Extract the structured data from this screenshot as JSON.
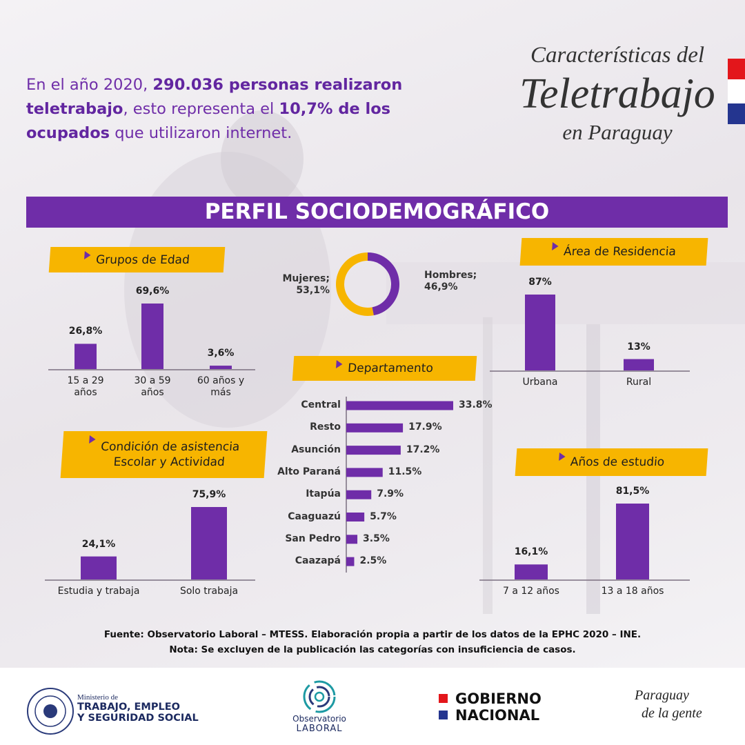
{
  "header": {
    "intro": [
      {
        "text": "En el año 2020, ",
        "bold": false
      },
      {
        "text": "290.036 personas realizaron teletrabajo",
        "bold": true
      },
      {
        "text": ", esto representa el ",
        "bold": false
      },
      {
        "text": "10,7% de los ocupados",
        "bold": true
      },
      {
        "text": " que utilizaron internet.",
        "bold": false
      }
    ],
    "title": [
      "Características del",
      "Teletrabajo",
      "en Paraguay"
    ]
  },
  "section_title": "PERFIL SOCIODEMOGRÁFICO",
  "chart_data": [
    {
      "type": "bar",
      "title": [
        "Grupos de Edad"
      ],
      "color": "#6f2da8",
      "categories": [
        "15 a 29 años",
        "30 a 59 años",
        "60 años y más"
      ],
      "values": [
        26.8,
        69.6,
        3.6
      ],
      "value_labels": [
        "26,8%",
        "69,6%",
        "3,6%"
      ]
    },
    {
      "type": "pie",
      "donut": true,
      "categories": [
        "Mujeres;",
        "Hombres;"
      ],
      "values": [
        53.1,
        46.9
      ],
      "value_labels": [
        "53,1%",
        "46,9%"
      ],
      "colors": [
        "#f7b500",
        "#6f2da8"
      ]
    },
    {
      "type": "bar",
      "title": [
        "Área de Residencia"
      ],
      "color": "#6f2da8",
      "categories": [
        "Urbana",
        "Rural"
      ],
      "values": [
        87,
        13
      ],
      "value_labels": [
        "87%",
        "13%"
      ]
    },
    {
      "type": "hbar",
      "title": [
        "Departamento"
      ],
      "color": "#6f2da8",
      "categories": [
        "Central",
        "Resto",
        "Asunción",
        "Alto Paraná",
        "Itapúa",
        "Caaguazú",
        "San Pedro",
        "Caazapá"
      ],
      "values": [
        33.8,
        17.9,
        17.2,
        11.5,
        7.9,
        5.7,
        3.5,
        2.5
      ],
      "value_labels": [
        "33.8%",
        "17.9%",
        "17.2%",
        "11.5%",
        "7.9%",
        "5.7%",
        "3.5%",
        "2.5%"
      ]
    },
    {
      "type": "bar",
      "title": [
        "Condición de asistencia",
        "Escolar y Actividad"
      ],
      "color": "#6f2da8",
      "categories": [
        "Estudia y trabaja",
        "Solo trabaja"
      ],
      "values": [
        24.1,
        75.9
      ],
      "value_labels": [
        "24,1%",
        "75,9%"
      ]
    },
    {
      "type": "bar",
      "title": [
        "Años de estudio"
      ],
      "color": "#6f2da8",
      "categories": [
        "7 a 12 años",
        "13 a 18 años"
      ],
      "values": [
        16.1,
        81.5
      ],
      "value_labels": [
        "16,1%",
        "81,5%"
      ]
    }
  ],
  "footer": {
    "source": "Fuente: Observatorio Laboral – MTESS. Elaboración propia a partir de los datos de la EPHC 2020 – INE.",
    "note": "Nota: Se excluyen de la publicación las categorías con insuficiencia de casos."
  },
  "logos": {
    "ministry_small": "Ministerio de",
    "ministry_lines": [
      "TRABAJO, EMPLEO",
      "Y SEGURIDAD SOCIAL"
    ],
    "observatorio": [
      "Observatorio",
      "LABORAL"
    ],
    "gobierno": [
      "GOBIERNO",
      "NACIONAL"
    ],
    "paraguay": [
      "Paraguay",
      "de la gente"
    ]
  }
}
